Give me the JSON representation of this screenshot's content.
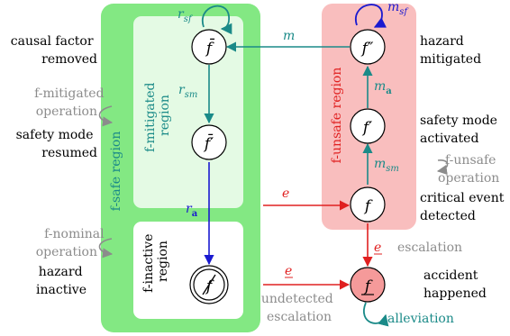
{
  "colors": {
    "safe_region": "#83e883",
    "inner_panel": "#e4fae4",
    "inactive_panel": "#ffffff",
    "unsafe_region": "#f9bebe",
    "teal": "#1a8a88",
    "blue": "#1a1ad0",
    "red": "#e02020",
    "gray": "#8c8c8c",
    "accident_fill": "#f59a9a"
  },
  "regions": {
    "safe": "f-safe region",
    "mitigated": "f-mitigated region",
    "mitigated_lines": [
      "f-mitigated",
      "region"
    ],
    "inactive_lines": [
      "f-inactive",
      "region"
    ],
    "unsafe": "f-unsafe region"
  },
  "states": {
    "f_bar": "f̄",
    "f_bar_prime": "f̄′",
    "f_crossed": "f",
    "f": "f",
    "f_prime": "f′",
    "f_double_prime": "f″",
    "f_accident": "f"
  },
  "transitions": {
    "r_sf": {
      "base": "r",
      "sub": "sf"
    },
    "r_sm": {
      "base": "r",
      "sub": "sm"
    },
    "r_a": {
      "base": "r",
      "sub": "a"
    },
    "m": {
      "base": "m",
      "sub": ""
    },
    "m_sf": {
      "base": "m",
      "sub": "sf"
    },
    "m_a": {
      "base": "m",
      "sub": "a"
    },
    "m_sm": {
      "base": "m",
      "sub": "sm"
    },
    "e_detected": "e",
    "e_escalation": "e",
    "e_undetected": "e",
    "alleviation": "alleviation"
  },
  "annotations": {
    "causal_factor_removed": [
      "causal factor",
      "removed"
    ],
    "f_mitigated_operation": [
      "f-mitigated",
      "operation"
    ],
    "safety_mode_resumed": [
      "safety mode",
      "resumed"
    ],
    "f_nominal_operation": [
      "f-nominal",
      "operation"
    ],
    "hazard_inactive": [
      "hazard",
      "inactive"
    ],
    "hazard_mitigated": [
      "hazard",
      "mitigated"
    ],
    "safety_mode_activated": [
      "safety mode",
      "activated"
    ],
    "f_unsafe_operation": [
      "f-unsafe",
      "operation"
    ],
    "critical_event_detected": [
      "critical event",
      "detected"
    ],
    "escalation": "escalation",
    "undetected_escalation": [
      "undetected",
      "escalation"
    ],
    "accident_happened": [
      "accident",
      "happened"
    ]
  }
}
